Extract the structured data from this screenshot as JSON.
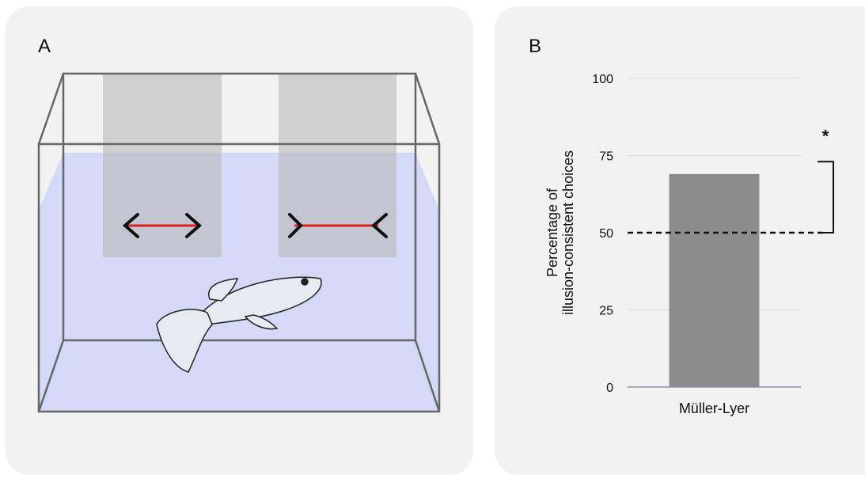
{
  "panels": {
    "a_label": "A",
    "b_label": "B"
  },
  "chart_data": {
    "type": "bar",
    "ylabel": [
      "Percentage of",
      "illusion-consistent choices"
    ],
    "categories": [
      "Müller-Lyer"
    ],
    "values": [
      69
    ],
    "color": "#8c8c8c",
    "ylim": [
      0,
      100
    ],
    "yticks": [
      0,
      25,
      50,
      75,
      100
    ],
    "grid": true,
    "reference_line": 50,
    "significance": {
      "label": "*",
      "range": [
        50,
        73
      ]
    }
  }
}
